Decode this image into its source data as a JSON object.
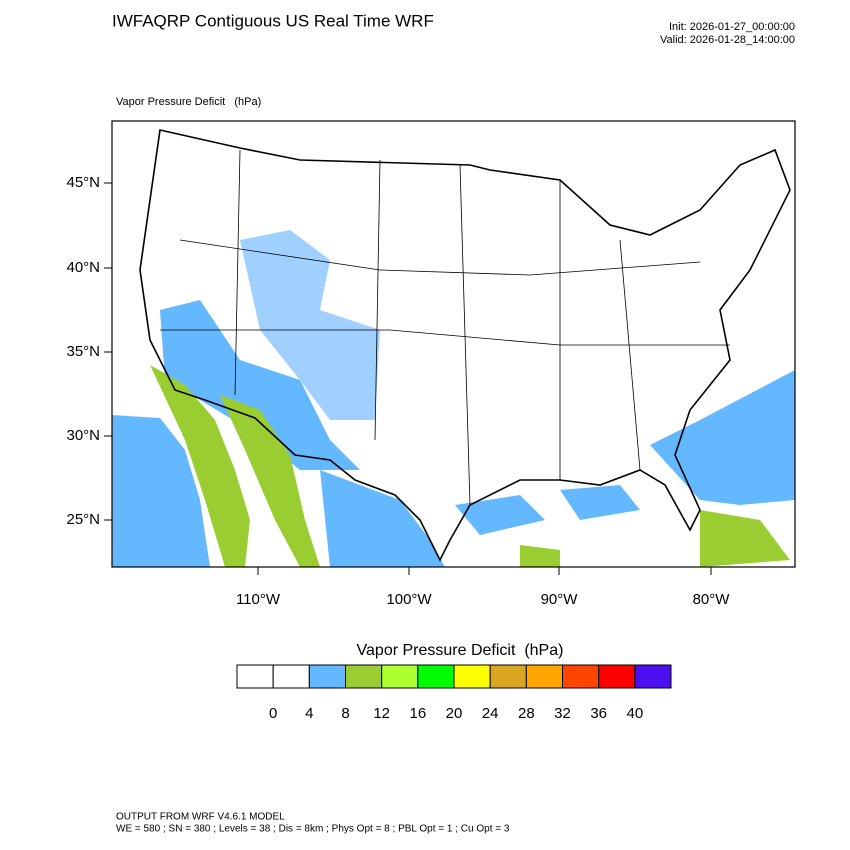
{
  "header": {
    "title": "IWFAQRP Contiguous US Real Time WRF",
    "init": "Init: 2026-01-27_00:00:00",
    "valid": "Valid: 2026-01-28_14:00:00"
  },
  "map": {
    "field_label": "Vapor Pressure Deficit   (hPa)",
    "lat_labels": [
      "45°N",
      "40°N",
      "35°N",
      "30°N",
      "25°N"
    ],
    "lon_labels": [
      "110°W",
      "100°W",
      "90°W",
      "80°W"
    ]
  },
  "colorbar": {
    "title": "Vapor Pressure Deficit  (hPa)",
    "levels": [
      0,
      4,
      8,
      12,
      16,
      20,
      24,
      28,
      32,
      36,
      40
    ],
    "colors": [
      "#ffffff",
      "#ffffff",
      "#63b8ff",
      "#9acd32",
      "#adff2f",
      "#00ff00",
      "#ffff00",
      "#daa520",
      "#ffa500",
      "#ff4500",
      "#ff0000",
      "#4c0ff0"
    ]
  },
  "footer": {
    "line1": "OUTPUT FROM WRF V4.6.1 MODEL",
    "line2": "WE = 580 ; SN = 380 ; Levels = 38 ; Dis = 8km ; Phys Opt = 8 ; PBL Opt = 1 ; Cu Opt = 3"
  }
}
